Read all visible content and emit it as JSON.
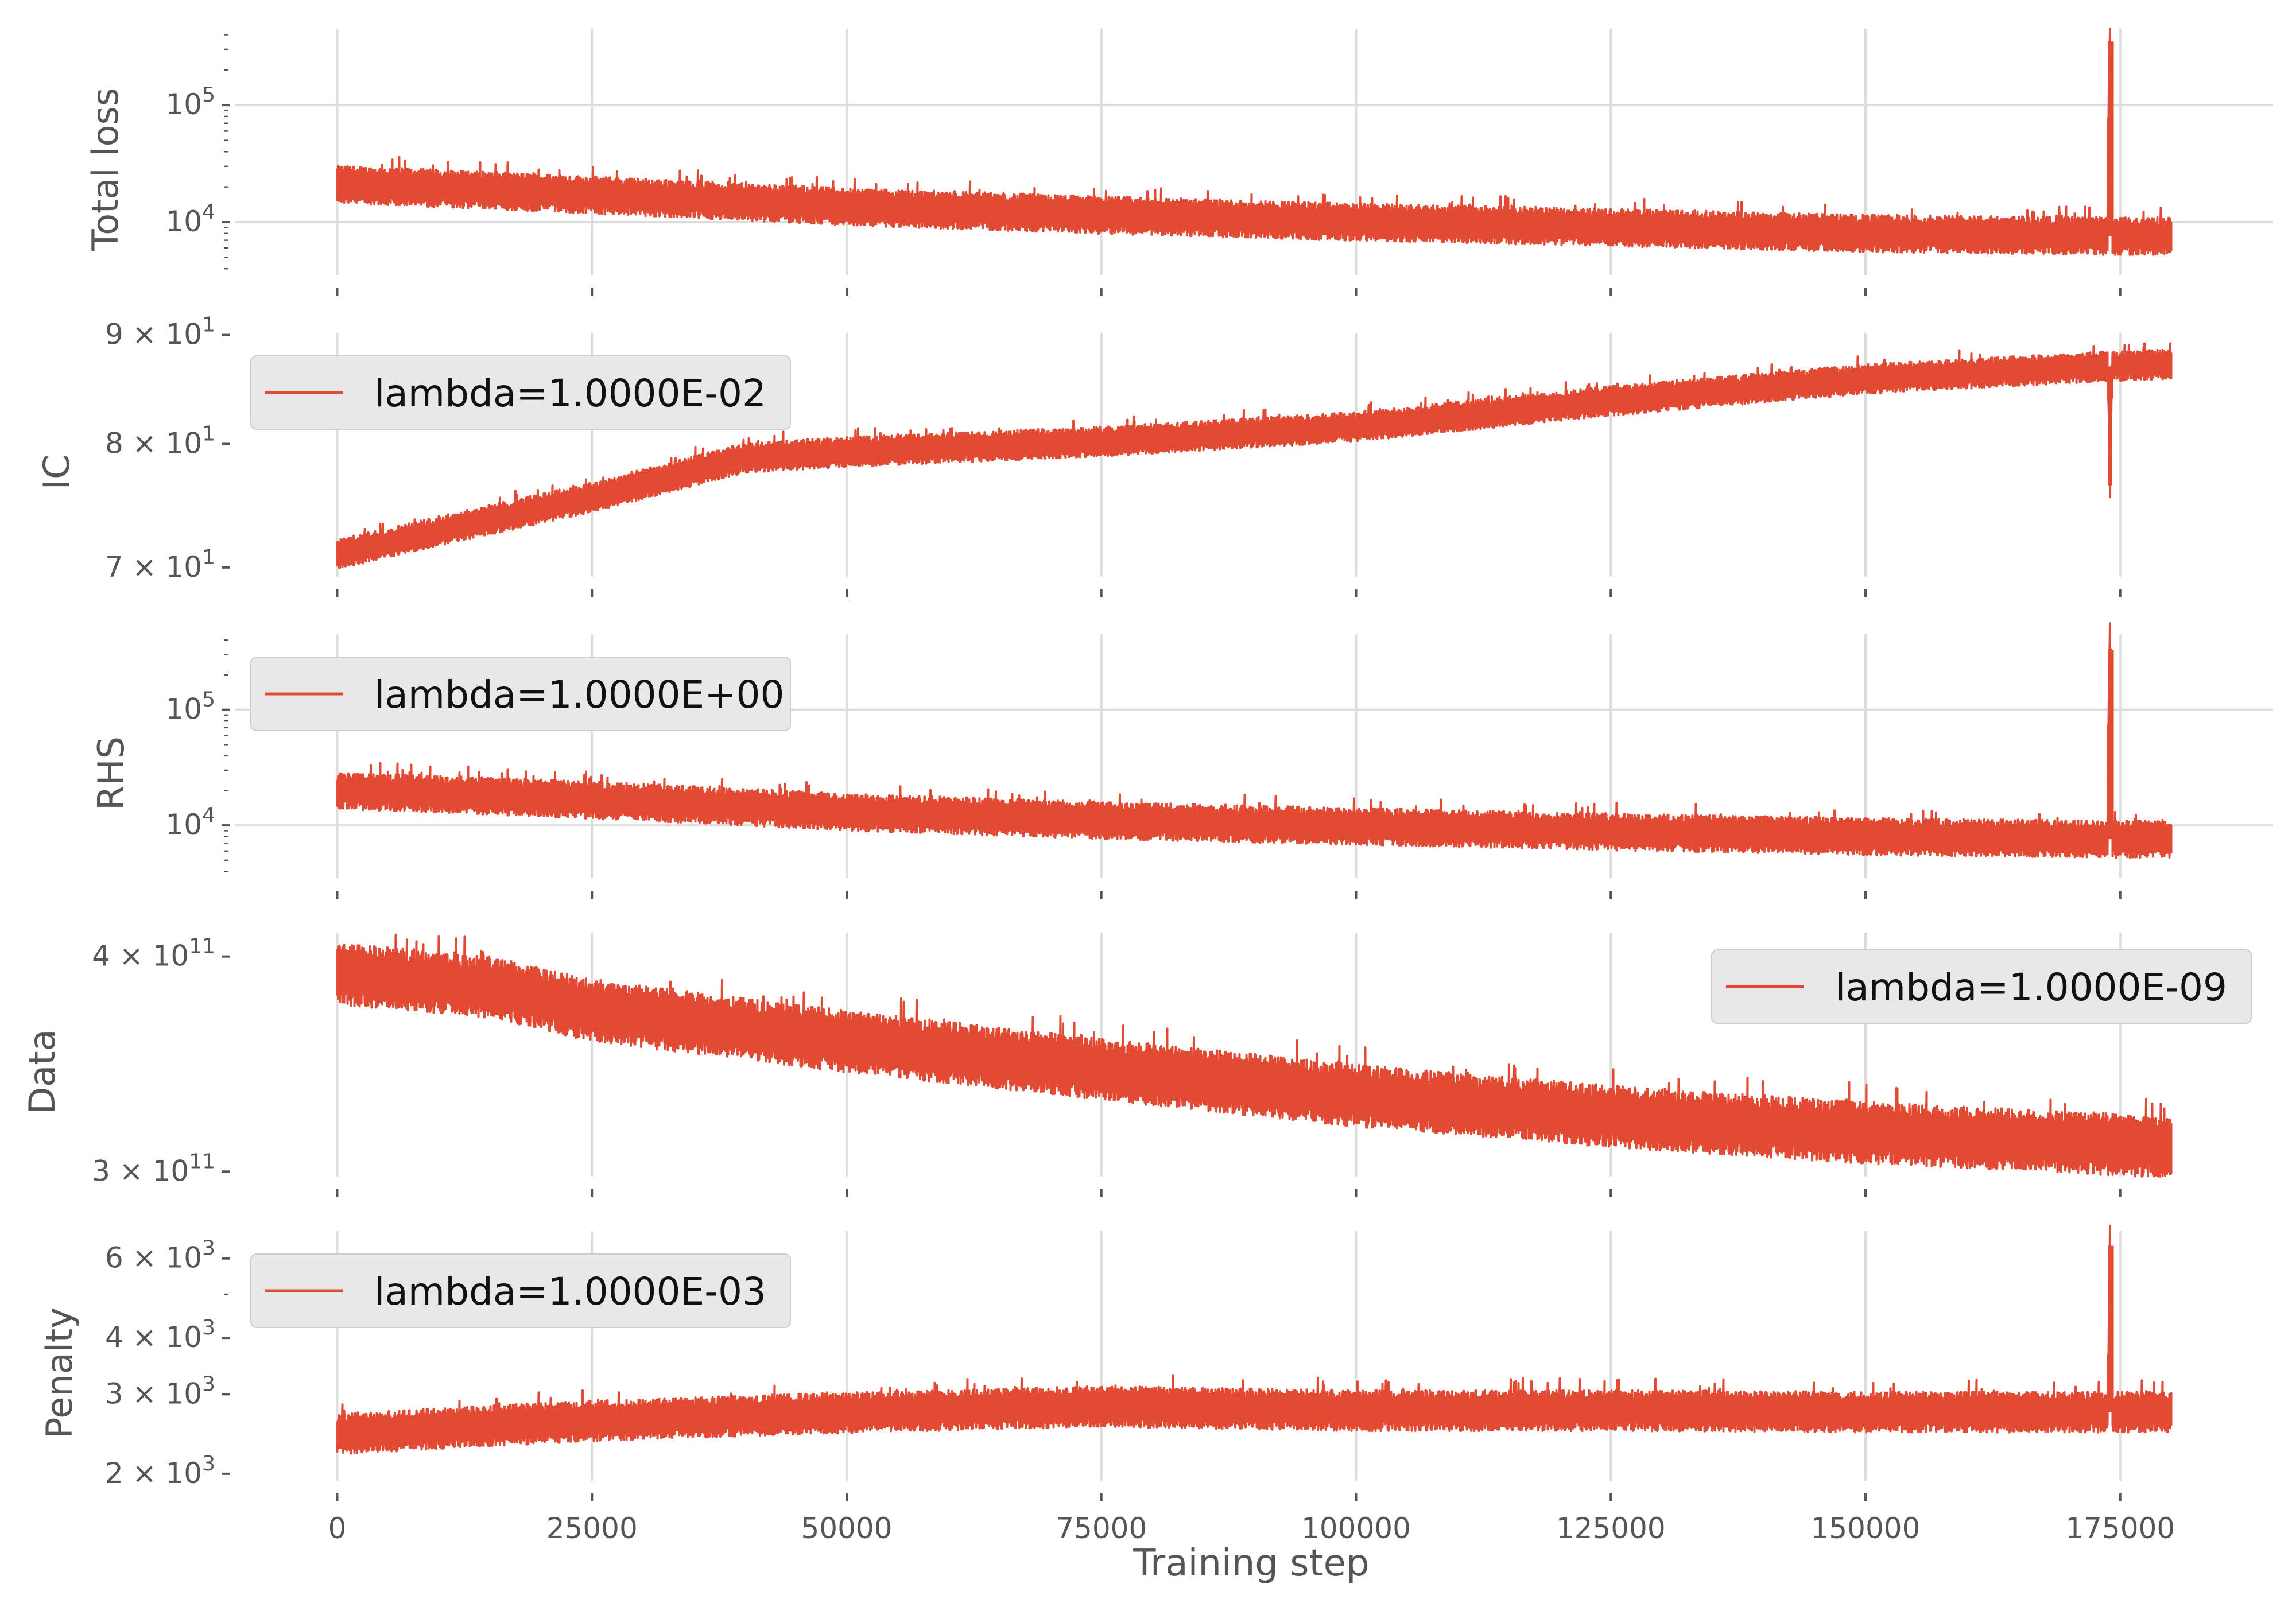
{
  "figure": {
    "xlabel": "Training step",
    "line_color": "#e24a33"
  },
  "chart_data": [
    {
      "type": "line",
      "ylabel": "Total loss",
      "yscale": "log",
      "xlim": [
        -10000,
        190000
      ],
      "ylim": [
        3500,
        450000
      ],
      "xticks": [
        0,
        25000,
        50000,
        75000,
        100000,
        125000,
        150000,
        175000
      ],
      "yticks": [
        {
          "value": 100000,
          "base": "10",
          "exp": "5"
        },
        {
          "value": 10000,
          "base": "10",
          "exp": "4"
        }
      ],
      "show_xtick_labels": false,
      "grid": true,
      "legend": null,
      "series": [
        {
          "x": [
            0,
            25000,
            50000,
            75000,
            100000,
            125000,
            150000,
            173800,
            174000,
            174200,
            180000
          ],
          "y": [
            21000,
            17000,
            13500,
            11500,
            10000,
            9000,
            8000,
            7600,
            350000,
            7600,
            7600
          ],
          "noise": 0.16
        }
      ]
    },
    {
      "type": "line",
      "ylabel": "IC",
      "yscale": "log",
      "xlim": [
        -10000,
        190000
      ],
      "ylim": [
        69300,
        90200
      ],
      "xticks": [
        0,
        25000,
        50000,
        75000,
        100000,
        125000,
        150000,
        175000
      ],
      "yticks": [
        {
          "value": 90000,
          "base": "9 × 10",
          "exp": "1"
        },
        {
          "value": 80000,
          "base": "8 × 10",
          "exp": "1"
        },
        {
          "value": 70000,
          "base": "7 × 10",
          "exp": "1"
        }
      ],
      "show_xtick_labels": false,
      "grid": true,
      "legend": {
        "label": "lambda=1.0000E-02",
        "position": "upper-left"
      },
      "series": [
        {
          "x": [
            0,
            25000,
            40000,
            50000,
            75000,
            100000,
            125000,
            150000,
            173800,
            174000,
            174200,
            180000
          ],
          "y": [
            71000,
            75500,
            78800,
            79300,
            80200,
            81500,
            83800,
            85800,
            87000,
            76500,
            87000,
            87200
          ],
          "noise": 0.007
        }
      ]
    },
    {
      "type": "line",
      "ylabel": "RHS",
      "yscale": "log",
      "xlim": [
        -10000,
        190000
      ],
      "ylim": [
        3500,
        450000
      ],
      "xticks": [
        0,
        25000,
        50000,
        75000,
        100000,
        125000,
        150000,
        175000
      ],
      "yticks": [
        {
          "value": 100000,
          "base": "10",
          "exp": "5"
        },
        {
          "value": 10000,
          "base": "10",
          "exp": "4"
        }
      ],
      "show_xtick_labels": false,
      "grid": true,
      "legend": {
        "label": "lambda=1.0000E+00",
        "position": "upper-left"
      },
      "series": [
        {
          "x": [
            0,
            25000,
            50000,
            75000,
            100000,
            125000,
            150000,
            173800,
            174000,
            174200,
            180000
          ],
          "y": [
            20000,
            16500,
            13000,
            11000,
            9800,
            8800,
            8000,
            7600,
            330000,
            7600,
            7600
          ],
          "noise": 0.16
        }
      ]
    },
    {
      "type": "line",
      "ylabel": "Data",
      "yscale": "log",
      "xlim": [
        -10000,
        190000
      ],
      "ylim": [
        298000000000,
        413000000000
      ],
      "xticks": [
        0,
        25000,
        50000,
        75000,
        100000,
        125000,
        150000,
        175000
      ],
      "yticks": [
        {
          "value": 400000000000,
          "base": "4 × 10",
          "exp": "11"
        },
        {
          "value": 300000000000,
          "base": "3 × 10",
          "exp": "11"
        }
      ],
      "show_xtick_labels": false,
      "grid": false,
      "legend": {
        "label": "lambda=1.0000E-09",
        "position": "upper-right"
      },
      "series": [
        {
          "x": [
            0,
            15000,
            25000,
            50000,
            75000,
            100000,
            125000,
            150000,
            180000
          ],
          "y": [
            391000000000,
            384000000000,
            372000000000,
            357000000000,
            344000000000,
            332000000000,
            323000000000,
            316000000000,
            310000000000
          ],
          "noise": 0.018
        }
      ]
    },
    {
      "type": "line",
      "ylabel": "Penalty",
      "yscale": "log",
      "xlim": [
        -10000,
        190000
      ],
      "ylim": [
        1930,
        6900
      ],
      "xticks": [
        0,
        25000,
        50000,
        75000,
        100000,
        125000,
        150000,
        175000
      ],
      "yticks": [
        {
          "value": 6000,
          "base": "6 × 10",
          "exp": "3"
        },
        {
          "value": 4000,
          "base": "4 × 10",
          "exp": "3"
        },
        {
          "value": 3000,
          "base": "3 × 10",
          "exp": "3"
        },
        {
          "value": 2000,
          "base": "2 × 10",
          "exp": "3"
        }
      ],
      "xtick_labels": [
        "0",
        "25000",
        "50000",
        "75000",
        "100000",
        "125000",
        "150000",
        "175000"
      ],
      "show_xtick_labels": true,
      "grid": true,
      "legend": {
        "label": "lambda=1.0000E-03",
        "position": "upper-left"
      },
      "series": [
        {
          "x": [
            0,
            25000,
            50000,
            75000,
            100000,
            125000,
            150000,
            173800,
            174000,
            174200,
            180000
          ],
          "y": [
            2450,
            2620,
            2730,
            2820,
            2760,
            2760,
            2740,
            2740,
            6400,
            2740,
            2740
          ],
          "noise": 0.045
        }
      ]
    }
  ]
}
